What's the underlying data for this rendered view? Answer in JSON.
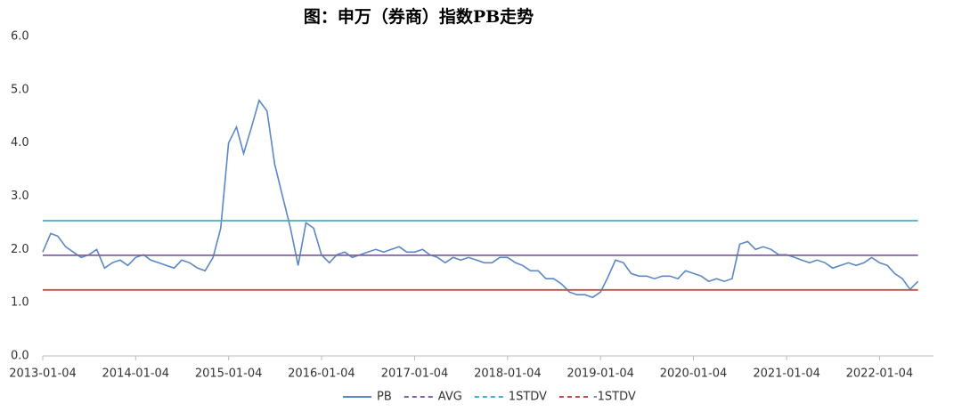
{
  "chart_data": {
    "type": "line",
    "title": "图：申万（券商）指数PB走势",
    "x": [
      "2013-01-04",
      "2013-02-04",
      "2013-03-04",
      "2013-04-04",
      "2013-05-04",
      "2013-06-04",
      "2013-07-04",
      "2013-08-04",
      "2013-09-04",
      "2013-10-04",
      "2013-11-04",
      "2013-12-04",
      "2014-01-04",
      "2014-02-04",
      "2014-03-04",
      "2014-04-04",
      "2014-05-04",
      "2014-06-04",
      "2014-07-04",
      "2014-08-04",
      "2014-09-04",
      "2014-10-04",
      "2014-11-04",
      "2014-12-04",
      "2015-01-04",
      "2015-02-04",
      "2015-03-04",
      "2015-04-04",
      "2015-05-04",
      "2015-06-04",
      "2015-07-04",
      "2015-08-04",
      "2015-09-04",
      "2015-10-04",
      "2015-11-04",
      "2015-12-04",
      "2016-01-04",
      "2016-02-04",
      "2016-03-04",
      "2016-04-04",
      "2016-05-04",
      "2016-06-04",
      "2016-07-04",
      "2016-08-04",
      "2016-09-04",
      "2016-10-04",
      "2016-11-04",
      "2016-12-04",
      "2017-01-04",
      "2017-02-04",
      "2017-03-04",
      "2017-04-04",
      "2017-05-04",
      "2017-06-04",
      "2017-07-04",
      "2017-08-04",
      "2017-09-04",
      "2017-10-04",
      "2017-11-04",
      "2017-12-04",
      "2018-01-04",
      "2018-02-04",
      "2018-03-04",
      "2018-04-04",
      "2018-05-04",
      "2018-06-04",
      "2018-07-04",
      "2018-08-04",
      "2018-09-04",
      "2018-10-04",
      "2018-11-04",
      "2018-12-04",
      "2019-01-04",
      "2019-02-04",
      "2019-03-04",
      "2019-04-04",
      "2019-05-04",
      "2019-06-04",
      "2019-07-04",
      "2019-08-04",
      "2019-09-04",
      "2019-10-04",
      "2019-11-04",
      "2019-12-04",
      "2020-01-04",
      "2020-02-04",
      "2020-03-04",
      "2020-04-04",
      "2020-05-04",
      "2020-06-04",
      "2020-07-04",
      "2020-08-04",
      "2020-09-04",
      "2020-10-04",
      "2020-11-04",
      "2020-12-04",
      "2021-01-04",
      "2021-02-04",
      "2021-03-04",
      "2021-04-04",
      "2021-05-04",
      "2021-06-04",
      "2021-07-04",
      "2021-08-04",
      "2021-09-04",
      "2021-10-04",
      "2021-11-04",
      "2021-12-04",
      "2022-01-04",
      "2022-02-04",
      "2022-03-04",
      "2022-04-04",
      "2022-05-04",
      "2022-06-04"
    ],
    "series": [
      {
        "name": "PB",
        "color": "#5b87c5",
        "values": [
          1.95,
          2.3,
          2.25,
          2.05,
          1.95,
          1.85,
          1.9,
          2.0,
          1.65,
          1.75,
          1.8,
          1.7,
          1.85,
          1.9,
          1.8,
          1.75,
          1.7,
          1.65,
          1.8,
          1.75,
          1.65,
          1.6,
          1.85,
          2.4,
          4.0,
          4.3,
          3.8,
          4.3,
          4.8,
          4.6,
          3.6,
          3.0,
          2.4,
          1.7,
          2.5,
          2.4,
          1.9,
          1.75,
          1.9,
          1.95,
          1.85,
          1.9,
          1.95,
          2.0,
          1.95,
          2.0,
          2.05,
          1.95,
          1.95,
          2.0,
          1.9,
          1.85,
          1.75,
          1.85,
          1.8,
          1.85,
          1.8,
          1.75,
          1.75,
          1.85,
          1.85,
          1.75,
          1.7,
          1.6,
          1.6,
          1.45,
          1.45,
          1.35,
          1.2,
          1.15,
          1.15,
          1.1,
          1.2,
          1.5,
          1.8,
          1.75,
          1.55,
          1.5,
          1.5,
          1.45,
          1.5,
          1.5,
          1.45,
          1.6,
          1.55,
          1.5,
          1.4,
          1.45,
          1.4,
          1.45,
          2.1,
          2.15,
          2.0,
          2.05,
          2.0,
          1.9,
          1.9,
          1.85,
          1.8,
          1.75,
          1.8,
          1.75,
          1.65,
          1.7,
          1.75,
          1.7,
          1.75,
          1.85,
          1.75,
          1.7,
          1.55,
          1.45,
          1.25,
          1.4
        ]
      },
      {
        "name": "AVG",
        "color": "#8064a2",
        "x": [
          "2013-01-04",
          "2022-06-04"
        ],
        "values": [
          1.89,
          1.89
        ]
      },
      {
        "name": "1STDV",
        "color": "#4bacc6",
        "x": [
          "2013-01-04",
          "2022-06-04"
        ],
        "values": [
          2.54,
          2.54
        ]
      },
      {
        "name": "-1STDV",
        "color": "#c0504d",
        "x": [
          "2013-01-04",
          "2022-06-04"
        ],
        "values": [
          1.24,
          1.24
        ]
      }
    ],
    "xlim": [
      "2013-01-04",
      "2022-08-04"
    ],
    "xticks": [
      "2013-01-04",
      "2014-01-04",
      "2015-01-04",
      "2016-01-04",
      "2017-01-04",
      "2018-01-04",
      "2019-01-04",
      "2020-01-04",
      "2021-01-04",
      "2022-01-04"
    ],
    "ylim": [
      0,
      6
    ],
    "yticks": [
      {
        "value": 0,
        "label": "0.0"
      },
      {
        "value": 1,
        "label": "1.0"
      },
      {
        "value": 2,
        "label": "2.0"
      },
      {
        "value": 3,
        "label": "3.0"
      },
      {
        "value": 4,
        "label": "4.0"
      },
      {
        "value": 5,
        "label": "5.0"
      },
      {
        "value": 6,
        "label": "6.0"
      }
    ],
    "grid": false,
    "legend": "bottom"
  }
}
